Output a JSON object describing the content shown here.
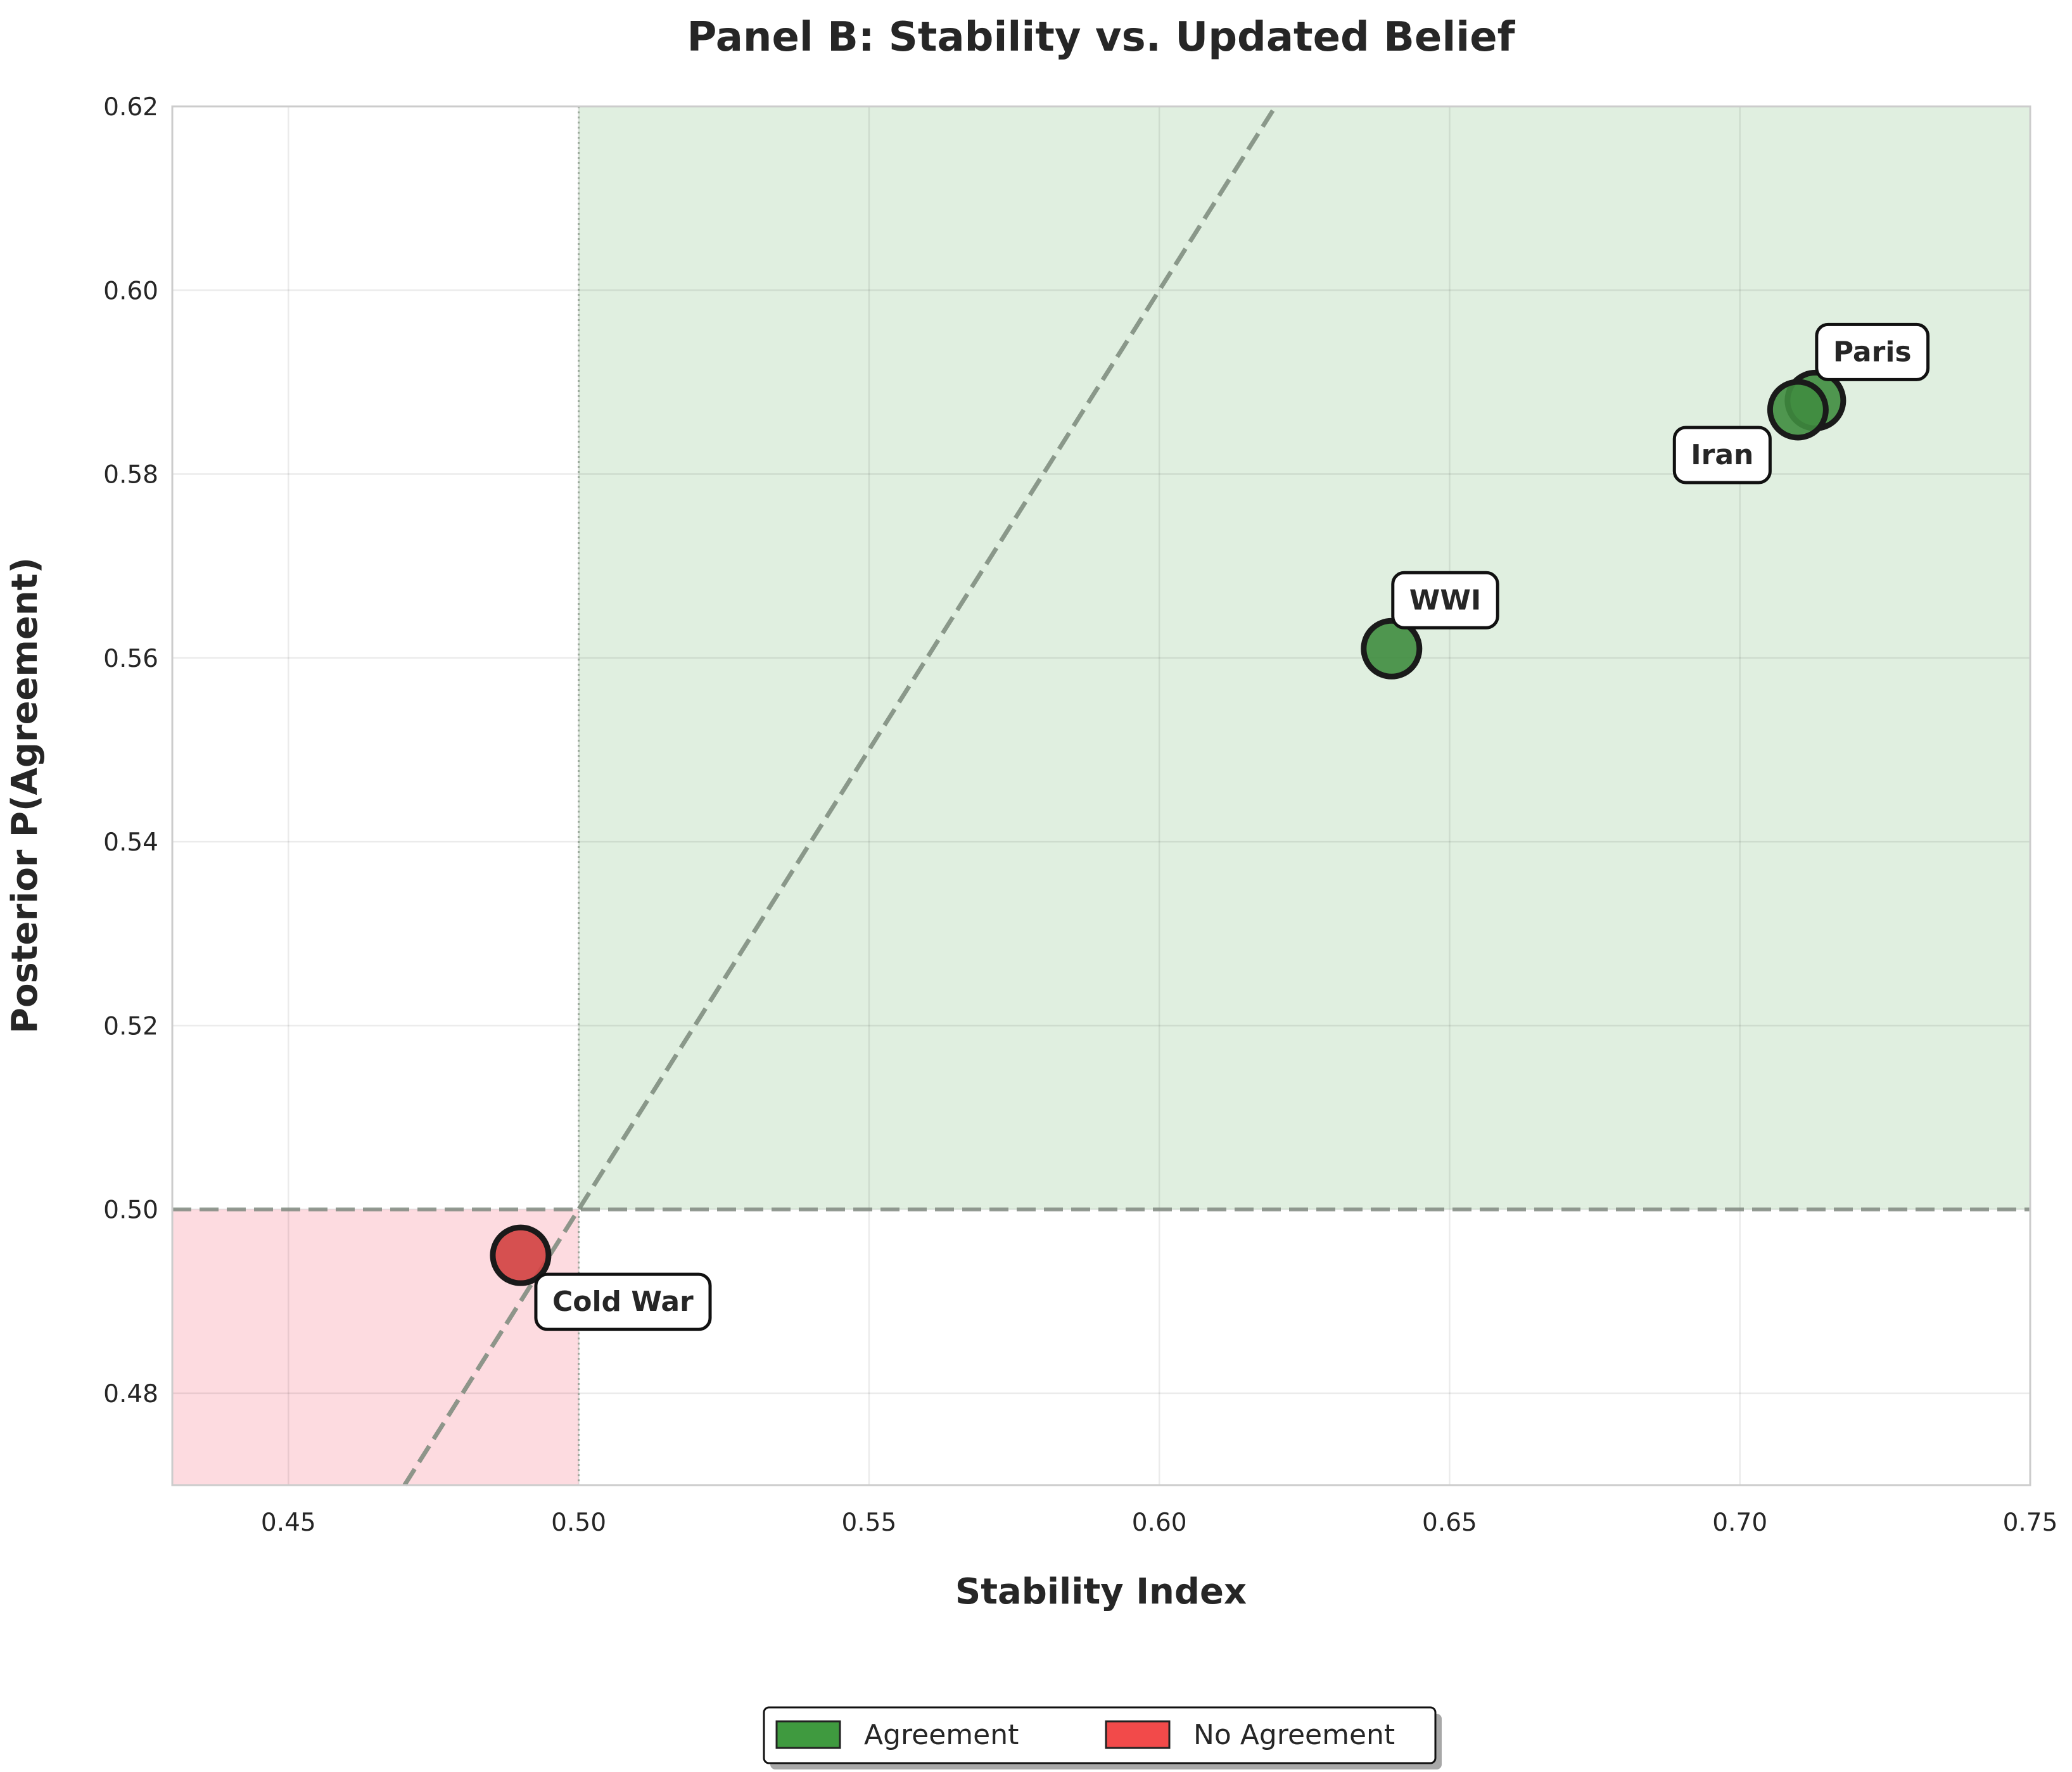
{
  "chart_data": {
    "type": "scatter",
    "title": "Panel B: Stability vs. Updated Belief",
    "xlabel": "Stability Index",
    "ylabel": "Posterior P(Agreement)",
    "xlim": [
      0.43,
      0.75
    ],
    "ylim": [
      0.47,
      0.62
    ],
    "xticks": [
      "0.45",
      "0.50",
      "0.55",
      "0.60",
      "0.65",
      "0.70",
      "0.75"
    ],
    "yticks": [
      "0.48",
      "0.50",
      "0.52",
      "0.54",
      "0.56",
      "0.58",
      "0.60",
      "0.62"
    ],
    "grid": true,
    "threshold_x": 0.5,
    "threshold_y": 0.5,
    "diagonal_line": {
      "slope": 1,
      "intercept": 0
    },
    "regions": [
      {
        "name": "Agreement",
        "x_range": [
          0.5,
          0.75
        ],
        "y_range": [
          0.5,
          0.62
        ],
        "color": "#e0efe0"
      },
      {
        "name": "No Agreement",
        "x_range": [
          0.43,
          0.5
        ],
        "y_range": [
          0.47,
          0.5
        ],
        "color": "#fddbe0"
      }
    ],
    "points": [
      {
        "label": "Paris",
        "x": 0.713,
        "y": 0.588,
        "group": "Agreement",
        "label_side": "upper-right"
      },
      {
        "label": "Iran",
        "x": 0.71,
        "y": 0.587,
        "group": "Agreement",
        "label_side": "lower-left"
      },
      {
        "label": "WWI",
        "x": 0.64,
        "y": 0.561,
        "group": "Agreement",
        "label_side": "upper-right"
      },
      {
        "label": "Cold War",
        "x": 0.49,
        "y": 0.495,
        "group": "No Agreement",
        "label_side": "lower-right"
      }
    ],
    "legend": {
      "placement": "bottom-center",
      "entries": [
        {
          "label": "Agreement",
          "color": "#3f9a3f"
        },
        {
          "label": "No Agreement",
          "color": "#f24a4a"
        }
      ]
    },
    "colors": {
      "agreement": "#3f8c3f",
      "no_agreement": "#d24040",
      "threshold_line": "#808a80",
      "diagonal": "#7a887a"
    }
  }
}
